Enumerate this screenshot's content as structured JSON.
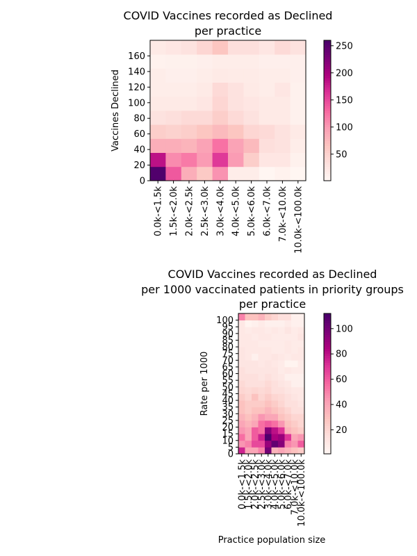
{
  "page_title": "COVID Vaccines recorded as Declined",
  "chart_data": [
    {
      "type": "heatmap",
      "title": [
        "COVID Vaccines recorded as Declined",
        "per practice"
      ],
      "xlabel": "",
      "ylabel": "Vaccines Declined",
      "x_categories": [
        "0.0k-<1.5k",
        "1.5k-<2.0k",
        "2.0k-<2.5k",
        "2.5k-<3.0k",
        "3.0k-<4.0k",
        "4.0k-<5.0k",
        "5.0k-<6.0k",
        "6.0k-<7.0k",
        "7.0k-<10.0k",
        "10.0k-<100.0k"
      ],
      "y_bins": [
        0,
        20,
        40,
        60,
        80,
        100,
        120,
        140,
        160,
        180
      ],
      "y_ticks": [
        "0",
        "20",
        "40",
        "60",
        "80",
        "100",
        "120",
        "140",
        "160"
      ],
      "values": [
        [
          255,
          140,
          85,
          60,
          105,
          15,
          15,
          3,
          8,
          2
        ],
        [
          185,
          110,
          120,
          100,
          160,
          100,
          55,
          25,
          25,
          10
        ],
        [
          85,
          85,
          80,
          95,
          125,
          95,
          75,
          35,
          30,
          15
        ],
        [
          55,
          50,
          55,
          65,
          75,
          65,
          45,
          40,
          30,
          20
        ],
        [
          30,
          35,
          40,
          40,
          55,
          40,
          30,
          20,
          20,
          10
        ],
        [
          20,
          20,
          20,
          25,
          45,
          30,
          25,
          20,
          20,
          10
        ],
        [
          15,
          15,
          15,
          20,
          40,
          30,
          20,
          15,
          25,
          10
        ],
        [
          15,
          12,
          12,
          15,
          20,
          18,
          18,
          15,
          15,
          12
        ],
        [
          8,
          10,
          10,
          12,
          15,
          15,
          15,
          12,
          12,
          12
        ],
        [
          20,
          25,
          30,
          45,
          65,
          35,
          35,
          25,
          40,
          30
        ]
      ],
      "colorbar": {
        "min": 1,
        "max": 260,
        "ticks": [
          50,
          100,
          150,
          200,
          250
        ]
      },
      "colormap": "RdPu"
    },
    {
      "type": "heatmap",
      "title": [
        "COVID Vaccines recorded as Declined",
        "per 1000 vaccinated patients in priority groups",
        "per practice"
      ],
      "xlabel": "Practice population size",
      "ylabel": "Rate per 1000",
      "x_categories": [
        "0.0k-<1.5k",
        "1.5k-<2.0k",
        "2.0k-<2.5k",
        "2.5k-<3.0k",
        "3.0k-<4.0k",
        "4.0k-<5.0k",
        "5.0k-<6.0k",
        "6.0k-<7.0k",
        "7.0k-<10.0k",
        "10.0k-<100.0k"
      ],
      "y_bins": [
        0,
        5,
        10,
        15,
        20,
        25,
        30,
        35,
        40,
        45,
        50,
        55,
        60,
        65,
        70,
        75,
        80,
        85,
        90,
        95,
        100,
        105
      ],
      "y_ticks": [
        "0",
        "5",
        "10",
        "15",
        "20",
        "25",
        "30",
        "35",
        "40",
        "45",
        "50",
        "55",
        "60",
        "65",
        "70",
        "75",
        "80",
        "85",
        "90",
        "95",
        "100"
      ],
      "values": [
        [
          75,
          40,
          40,
          50,
          100,
          35,
          40,
          35,
          30,
          25
        ],
        [
          45,
          50,
          65,
          65,
          90,
          105,
          95,
          50,
          45,
          60
        ],
        [
          55,
          40,
          60,
          75,
          110,
          85,
          90,
          70,
          40,
          45
        ],
        [
          45,
          40,
          60,
          55,
          95,
          80,
          70,
          35,
          30,
          25
        ],
        [
          40,
          35,
          40,
          55,
          60,
          55,
          45,
          30,
          25,
          20
        ],
        [
          35,
          30,
          35,
          45,
          40,
          40,
          30,
          25,
          20,
          20
        ],
        [
          30,
          25,
          30,
          30,
          35,
          30,
          25,
          20,
          15,
          15
        ],
        [
          30,
          25,
          25,
          25,
          30,
          25,
          20,
          15,
          15,
          12
        ],
        [
          25,
          20,
          30,
          20,
          25,
          20,
          18,
          15,
          12,
          10
        ],
        [
          20,
          18,
          20,
          18,
          20,
          15,
          15,
          12,
          10,
          10
        ],
        [
          18,
          15,
          15,
          15,
          18,
          15,
          12,
          10,
          5,
          5
        ],
        [
          15,
          15,
          15,
          12,
          15,
          12,
          10,
          5,
          5,
          5
        ],
        [
          15,
          12,
          12,
          12,
          12,
          12,
          8,
          10,
          8,
          8
        ],
        [
          12,
          12,
          12,
          10,
          12,
          10,
          8,
          3,
          3,
          8
        ],
        [
          12,
          10,
          5,
          10,
          10,
          12,
          10,
          8,
          10,
          10
        ],
        [
          12,
          10,
          10,
          10,
          10,
          8,
          8,
          10,
          8,
          10
        ],
        [
          10,
          10,
          10,
          8,
          8,
          8,
          8,
          10,
          8,
          8
        ],
        [
          10,
          10,
          8,
          10,
          10,
          8,
          8,
          8,
          8,
          12
        ],
        [
          10,
          8,
          10,
          10,
          8,
          10,
          8,
          12,
          8,
          10
        ],
        [
          10,
          3,
          5,
          8,
          5,
          5,
          5,
          8,
          5,
          5
        ],
        [
          50,
          30,
          30,
          35,
          25,
          20,
          15,
          15,
          5,
          5
        ]
      ],
      "colorbar": {
        "min": 1,
        "max": 112,
        "ticks": [
          20,
          40,
          60,
          80,
          100
        ]
      },
      "colormap": "RdPu"
    }
  ]
}
